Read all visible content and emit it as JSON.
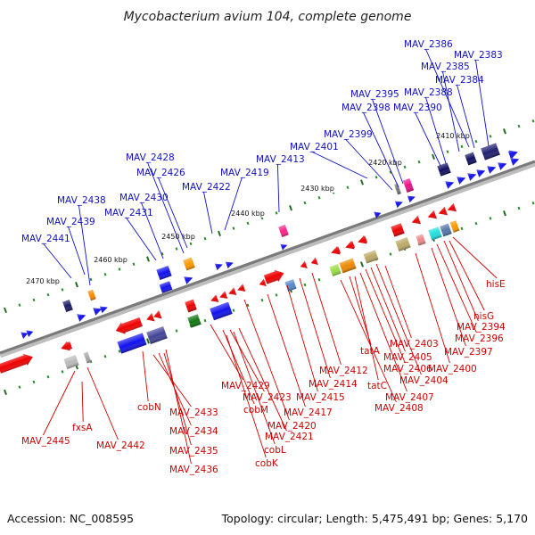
{
  "title": "Mycobacterium avium 104, complete genome",
  "footer": {
    "accession": "Accession: NC_008595",
    "summary": "Topology: circular; Length: 5,475,491 bp; Genes: 5,170"
  },
  "scale_labels": [
    "2410 kbp",
    "2420 kbp",
    "2430 kbp",
    "2440 kbp",
    "2450 kbp",
    "2460 kbp",
    "2470 kbp"
  ],
  "top_labels": [
    "MAV_2386",
    "MAV_2383",
    "MAV_2385",
    "MAV_2384",
    "MAV_2388",
    "MAV_2395",
    "MAV_2398",
    "MAV_2390",
    "MAV_2399",
    "MAV_2401",
    "MAV_2413",
    "MAV_2428",
    "MAV_2426",
    "MAV_2419",
    "MAV_2422",
    "MAV_2430",
    "MAV_2438",
    "MAV_2431",
    "MAV_2439",
    "MAV_2441"
  ],
  "bottom_labels": [
    "hisE",
    "hisG",
    "MAV_2394",
    "MAV_2396",
    "MAV_2397",
    "MAV_2403",
    "MAV_2400",
    "tatA",
    "MAV_2405",
    "MAV_2406",
    "MAV_2404",
    "tatC",
    "MAV_2407",
    "MAV_2408",
    "MAV_2412",
    "MAV_2414",
    "MAV_2415",
    "MAV_2429",
    "MAV_2423",
    "cobM",
    "MAV_2417",
    "MAV_2420",
    "MAV_2421",
    "cobL",
    "cobK",
    "cobN",
    "MAV_2433",
    "MAV_2434",
    "MAV_2435",
    "MAV_2436",
    "fxsA",
    "MAV_2445",
    "MAV_2442"
  ],
  "colors": {
    "top_label": "#1010c8",
    "bottom_label": "#d00000",
    "backbone": "#8a8a8a",
    "tick": "#2a8a2a"
  }
}
